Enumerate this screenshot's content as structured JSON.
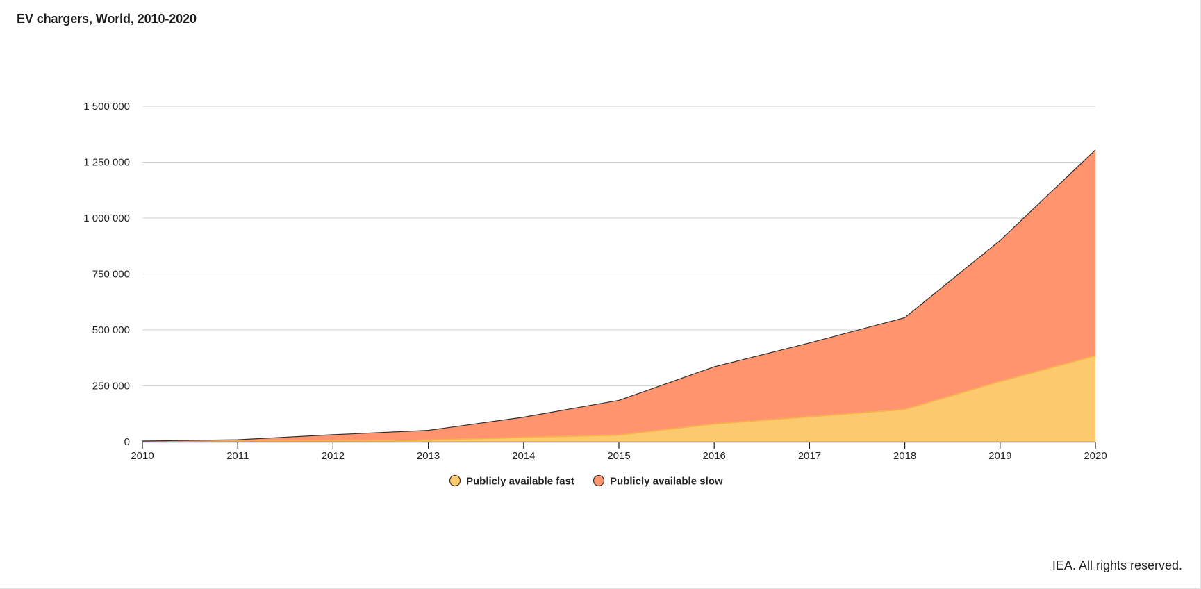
{
  "title": "EV chargers, World, 2010-2020",
  "credit": "IEA. All rights reserved.",
  "colors": {
    "fast": "#FDC96F",
    "slow": "#FF946E",
    "fast_marker": "#F9B233",
    "slow_marker": "#F26B47",
    "grid": "#d0d0d0",
    "axis": "#222222"
  },
  "chart_data": {
    "type": "area",
    "stacked": true,
    "x": [
      2010,
      2011,
      2012,
      2013,
      2014,
      2015,
      2016,
      2017,
      2018,
      2019,
      2020
    ],
    "xtick_labels": [
      "2010",
      "2011",
      "2012",
      "2013",
      "2014",
      "2015",
      "2016",
      "2017",
      "2018",
      "2019",
      "2020"
    ],
    "ylim": [
      0,
      1500000
    ],
    "yticks": [
      0,
      250000,
      500000,
      750000,
      1000000,
      1250000,
      1500000
    ],
    "ytick_labels": [
      "0",
      "250 000",
      "500 000",
      "750 000",
      "1 000 000",
      "1 250 000",
      "1 500 000"
    ],
    "grid": true,
    "legend_position": "bottom",
    "series": [
      {
        "name": "Publicly available fast",
        "values": [
          400,
          1800,
          3500,
          7000,
          20000,
          30000,
          80000,
          112000,
          145000,
          270000,
          385000
        ]
      },
      {
        "name": "Publicly available slow",
        "values": [
          2800,
          7200,
          28000,
          44000,
          90000,
          155000,
          255000,
          330000,
          410000,
          630000,
          920000
        ]
      }
    ]
  }
}
